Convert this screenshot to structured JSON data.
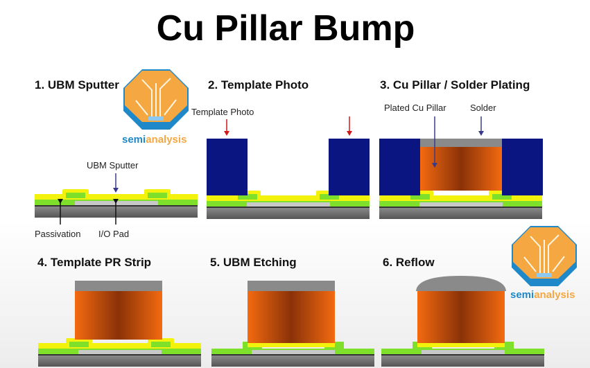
{
  "title": "Cu Pillar Bump",
  "steps": [
    {
      "label": "1. UBM Sputter"
    },
    {
      "label": "2. Template Photo"
    },
    {
      "label": "3. Cu Pillar / Solder Plating"
    },
    {
      "label": "4. Template PR Strip"
    },
    {
      "label": "5. UBM Etching"
    },
    {
      "label": "6. Reflow"
    }
  ],
  "annotations": {
    "ubm_sputter": "UBM  Sputter",
    "passivation": "Passivation",
    "io_pad": "I/O Pad",
    "template_photo": "Template  Photo",
    "plated_cu_pillar": "Plated  Cu Pillar",
    "solder": "Solder"
  },
  "logo": {
    "text_a": "semi",
    "text_b": "analysis"
  },
  "colors": {
    "ubm": "#f2f20c",
    "passivation": "#7ee02a",
    "pad": "#c8c8c8",
    "substrate": "#6a6a6a",
    "photoresist": "#0a1582",
    "copper": "#f06a10",
    "solder": "#8a8a8a",
    "logo_orange": "#f5a742",
    "logo_blue": "#1e88c8",
    "arrow_red": "#d01818",
    "arrow_blue": "#3a3a8a"
  }
}
